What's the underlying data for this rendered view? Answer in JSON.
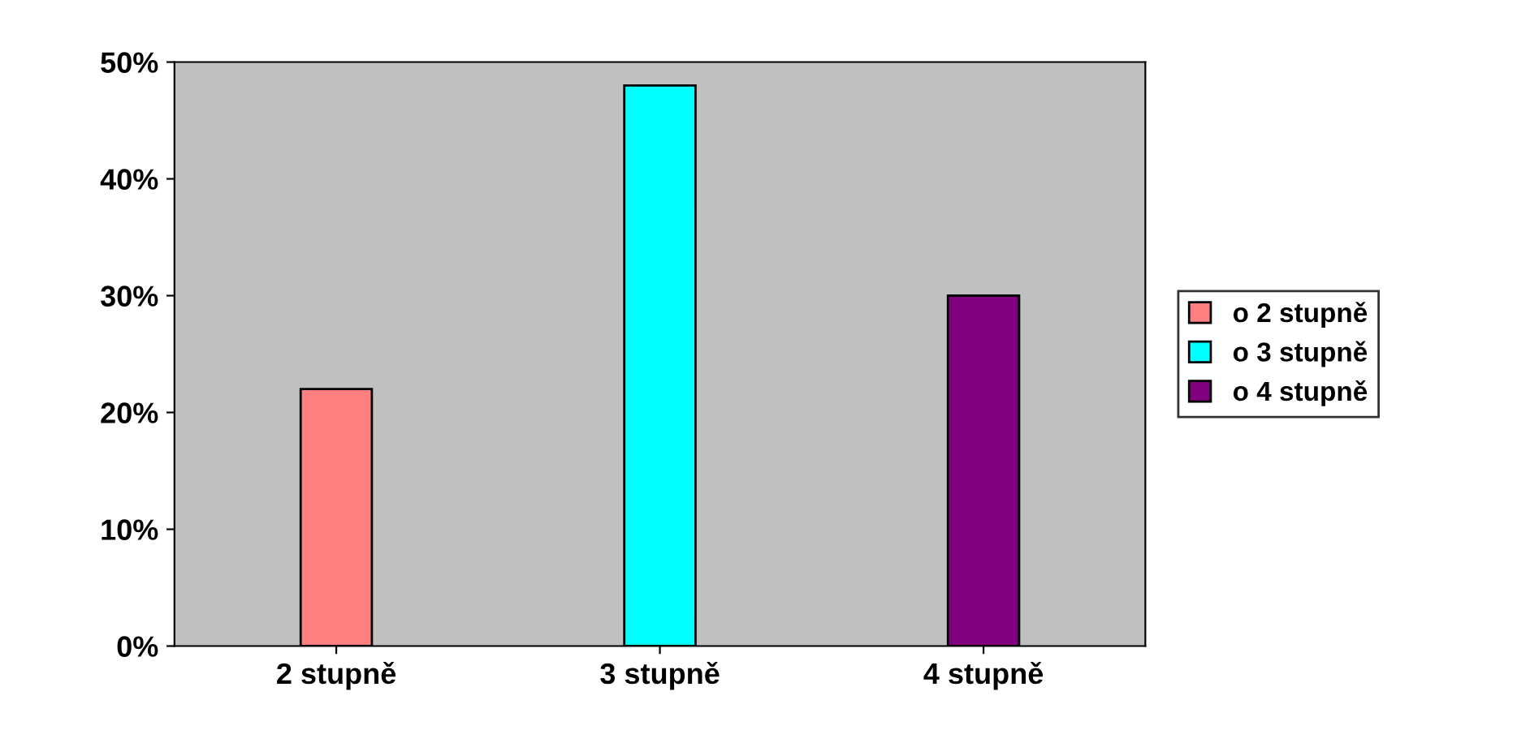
{
  "chart_data": {
    "type": "bar",
    "categories": [
      "2 stupně",
      "3 stupně",
      "4 stupně"
    ],
    "series": [
      {
        "name": "o 2 stupně",
        "color": "#ff8080",
        "values": [
          22,
          null,
          null
        ]
      },
      {
        "name": "o 3 stupně",
        "color": "#00ffff",
        "values": [
          null,
          48,
          null
        ]
      },
      {
        "name": "o 4 stupně",
        "color": "#800080",
        "values": [
          null,
          null,
          30
        ]
      }
    ],
    "ylim": [
      0,
      50
    ],
    "yticks": [
      {
        "value": 0,
        "label": "0%"
      },
      {
        "value": 10,
        "label": "10%"
      },
      {
        "value": 20,
        "label": "20%"
      },
      {
        "value": 30,
        "label": "30%"
      },
      {
        "value": 40,
        "label": "40%"
      },
      {
        "value": 50,
        "label": "50%"
      }
    ],
    "grid": false,
    "legend": "right"
  }
}
